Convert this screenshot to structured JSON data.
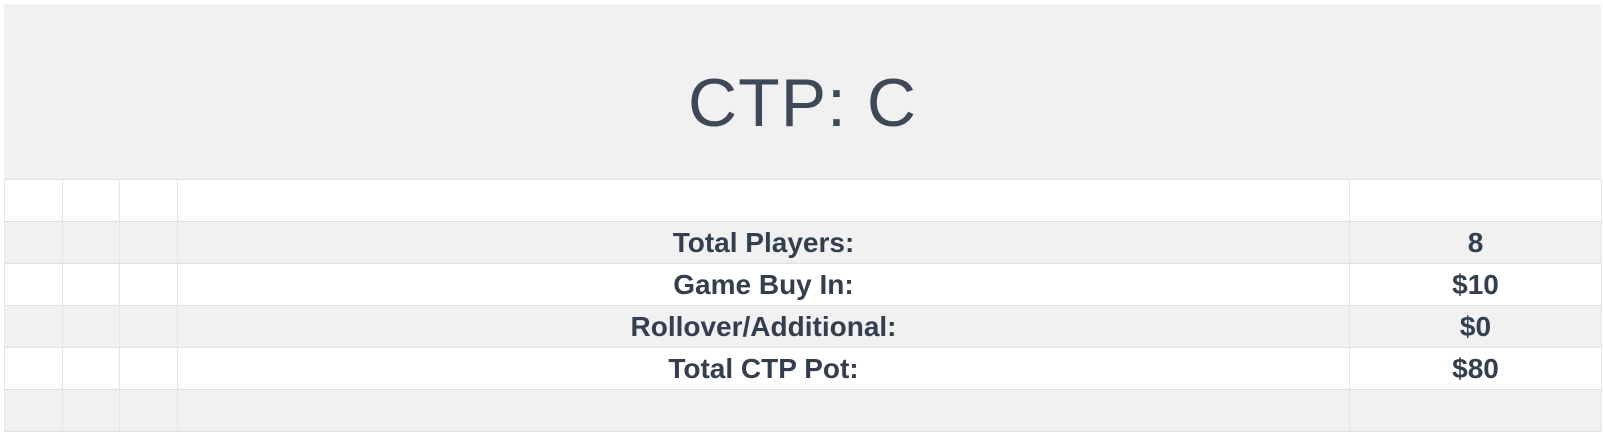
{
  "header": {
    "title": "CTP: C"
  },
  "colors": {
    "header_bg": "#f1f1f2",
    "row_alt_bg": "#f1f1f2",
    "row_bg": "#ffffff",
    "title_color": "#3e4857",
    "cell_color": "#333e4e",
    "grid_v": "#e6e6e6",
    "grid_h": "#e0e0e0"
  },
  "table": {
    "rows": [
      {
        "label": "",
        "value": ""
      },
      {
        "label": "Total Players:",
        "value": "8"
      },
      {
        "label": "Game Buy In:",
        "value": "$10"
      },
      {
        "label": "Rollover/Additional:",
        "value": "$0"
      },
      {
        "label": "Total CTP Pot:",
        "value": "$80"
      },
      {
        "label": "",
        "value": ""
      }
    ]
  }
}
